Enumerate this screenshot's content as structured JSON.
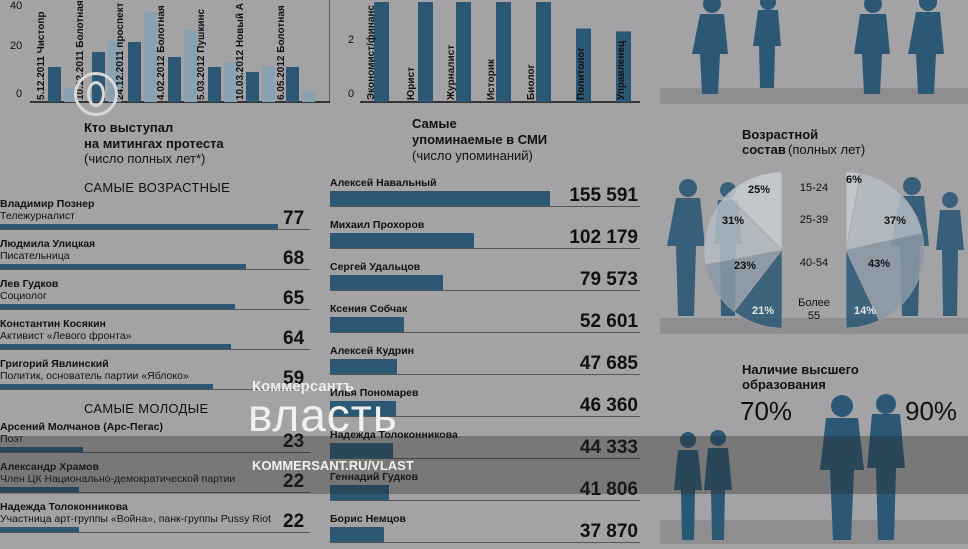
{
  "protest_chart": {
    "y_ticks": [
      "40",
      "20",
      "0"
    ],
    "labels": [
      "5.12.2011 Чистопр",
      "10.12.2011 Болотная",
      "24.12.2011 проспект",
      "4.02.2012 Болотная",
      "5.03.2012 Пушкинс",
      "10.03.2012 Новый А",
      "6.05.2012 Болотная"
    ]
  },
  "prof_chart": {
    "y_ticks": [
      "2",
      "0"
    ],
    "labels": [
      "Экономист/финанс",
      "Юрист",
      "Журналист",
      "Историк",
      "Биолог",
      "Политолог",
      "Управленец"
    ]
  },
  "speakers": {
    "title": "Кто выступал\nна митингах протеста",
    "subtitle": "(число полных лет*)",
    "oldest_heading": "САМЫЕ ВОЗРАСТНЫЕ",
    "youngest_heading": "САМЫЕ МОЛОДЫЕ",
    "oldest": [
      {
        "name": "Владимир Познер",
        "role": "Тележурналист",
        "age": "77",
        "value": 77
      },
      {
        "name": "Людмила Улицкая",
        "role": "Писательница",
        "age": "68",
        "value": 68
      },
      {
        "name": "Лев Гудков",
        "role": "Социолог",
        "age": "65",
        "value": 65
      },
      {
        "name": "Константин Косякин",
        "role": "Активист «Левого фронта»",
        "age": "64",
        "value": 64
      },
      {
        "name": "Григорий Явлинский",
        "role": "Политик, основатель партии «Яблоко»",
        "age": "59",
        "value": 59
      }
    ],
    "youngest": [
      {
        "name": "Арсений Молчанов (Арс-Пегас)",
        "role": "Поэт",
        "age": "23",
        "value": 23
      },
      {
        "name": "Александр Храмов",
        "role": "Член ЦК Национально-демократической партии",
        "age": "22",
        "value": 22
      },
      {
        "name": "Надежда Толоконникова",
        "role": "Участница арт-группы «Война», панк-группы Pussy Riot",
        "age": "22",
        "value": 22
      }
    ]
  },
  "media": {
    "title": "Самые\nупоминаемые в СМИ",
    "subtitle": "(число упоминаний)",
    "items": [
      {
        "name": "Алексей Навальный",
        "count": "155 591",
        "value": 155591
      },
      {
        "name": "Михаил Прохоров",
        "count": "102 179",
        "value": 102179
      },
      {
        "name": "Сергей Удальцов",
        "count": "79 573",
        "value": 79573
      },
      {
        "name": "Ксения Собчак",
        "count": "52 601",
        "value": 52601
      },
      {
        "name": "Алексей Кудрин",
        "count": "47 685",
        "value": 47685
      },
      {
        "name": "Илья Пономарев",
        "count": "46 360",
        "value": 46360
      },
      {
        "name": "Надежда Толоконникова",
        "count": "44 333",
        "value": 44333
      },
      {
        "name": "Геннадий Гудков",
        "count": "41 806",
        "value": 41806
      },
      {
        "name": "Борис Немцов",
        "count": "37 870",
        "value": 37870
      }
    ]
  },
  "age": {
    "title": "Возрастной\nсостав",
    "subtitle": "(полных лет)",
    "groups": [
      "15-24",
      "25-39",
      "40-54",
      "Более\n55"
    ],
    "left_pct": [
      "25%",
      "31%",
      "23%",
      "21%"
    ],
    "right_pct": [
      "6%",
      "37%",
      "43%",
      "14%"
    ],
    "left_values": [
      25,
      31,
      23,
      21
    ],
    "right_values": [
      6,
      37,
      43,
      14
    ]
  },
  "education": {
    "title": "Наличие высшего\nобразования",
    "left": "70%",
    "right": "90%"
  },
  "watermark": {
    "brand": "Коммерсантъ",
    "name": "власть",
    "url": "KOMMERSANT.RU/VLAST"
  },
  "chart_data": [
    {
      "type": "bar",
      "title": "",
      "categories": [
        "5.12.2011 Чистопр",
        "10.12.2011 Болотная",
        "24.12.2011 проспект",
        "4.02.2012 Болотная",
        "5.03.2012 Пушкинс",
        "10.03.2012 Новый А",
        "6.05.2012 Болотная"
      ],
      "ylim": [
        0,
        45
      ]
    },
    {
      "type": "bar",
      "title": "",
      "categories": [
        "Экономист/финанс",
        "Юрист",
        "Журналист",
        "Историк",
        "Биолог",
        "Политолог",
        "Управленец"
      ],
      "ylim": [
        0,
        3.4
      ]
    },
    {
      "type": "bar",
      "title": "Кто выступал на митингах протеста (число полных лет*)",
      "categories": [
        "Владимир Познер",
        "Людмила Улицкая",
        "Лев Гудков",
        "Константин Косякин",
        "Григорий Явлинский",
        "Арсений Молчанов (Арс-Пегас)",
        "Александр Храмов",
        "Надежда Толоконникова"
      ],
      "values": [
        77,
        68,
        65,
        64,
        59,
        23,
        22,
        22
      ]
    },
    {
      "type": "bar",
      "title": "Самые упоминаемые в СМИ (число упоминаний)",
      "categories": [
        "Алексей Навальный",
        "Михаил Прохоров",
        "Сергей Удальцов",
        "Ксения Собчак",
        "Алексей Кудрин",
        "Илья Пономарев",
        "Надежда Толоконникова",
        "Геннадий Гудков",
        "Борис Немцов"
      ],
      "values": [
        155591,
        102179,
        79573,
        52601,
        47685,
        46360,
        44333,
        41806,
        37870
      ]
    },
    {
      "type": "pie",
      "title": "Возрастной состав (полных лет)",
      "categories": [
        "15-24",
        "25-39",
        "40-54",
        "Более 55"
      ],
      "series": [
        {
          "values": [
            25,
            31,
            23,
            21
          ]
        },
        {
          "values": [
            6,
            37,
            43,
            14
          ]
        }
      ]
    },
    {
      "type": "table",
      "title": "Наличие высшего образования",
      "values": [
        "70%",
        "90%"
      ]
    }
  ]
}
